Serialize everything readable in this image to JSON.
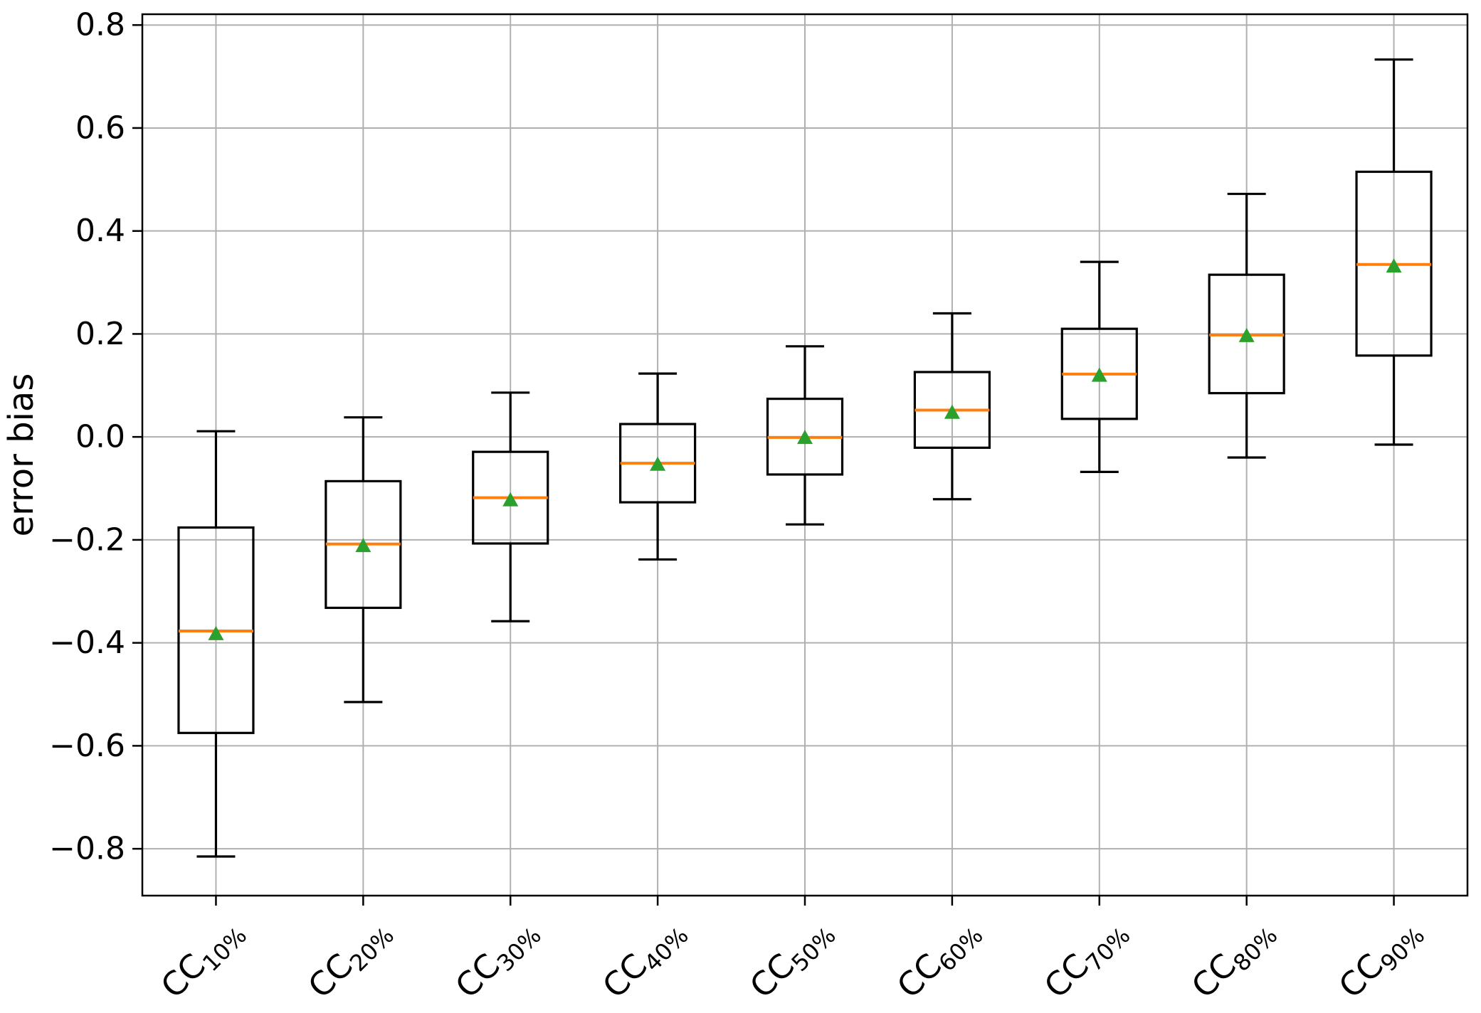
{
  "figure": {
    "background": "#ffffff"
  },
  "chart_data": {
    "type": "boxplot",
    "title": "",
    "xlabel": "",
    "ylabel": "error bias",
    "ylim": [
      -0.891,
      0.821
    ],
    "grid": true,
    "legend": "none",
    "ytick_values": [
      0.8,
      0.6,
      0.4,
      0.2,
      0.0,
      -0.2,
      -0.4,
      -0.6,
      -0.8
    ],
    "ytick_labels": [
      "0.8",
      "0.6",
      "0.4",
      "0.2",
      "0.0",
      "−0.2",
      "−0.4",
      "−0.6",
      "−0.8"
    ],
    "xtick_labels": [
      "CC10%",
      "CC20%",
      "CC30%",
      "CC40%",
      "CC50%",
      "CC60%",
      "CC70%",
      "CC80%",
      "CC90%"
    ],
    "mean_marker_shape": "triangle-up",
    "colors": {
      "box_edge": "#000000",
      "whisker": "#000000",
      "median": "#ff7f0e",
      "mean_marker": "#2ca02c",
      "grid": "#b0b0b0",
      "spine": "#000000",
      "tick_label": "#000000"
    },
    "boxes": [
      {
        "category": "CC10%",
        "prefix": "CC",
        "subscript": "10%",
        "whislo": -0.815,
        "q1": -0.575,
        "med": -0.377,
        "mean": -0.381,
        "q3": -0.176,
        "whishi": 0.011
      },
      {
        "category": "CC20%",
        "prefix": "CC",
        "subscript": "20%",
        "whislo": -0.515,
        "q1": -0.332,
        "med": -0.208,
        "mean": -0.21,
        "q3": -0.086,
        "whishi": 0.038
      },
      {
        "category": "CC30%",
        "prefix": "CC",
        "subscript": "30%",
        "whislo": -0.358,
        "q1": -0.207,
        "med": -0.118,
        "mean": -0.121,
        "q3": -0.029,
        "whishi": 0.086
      },
      {
        "category": "CC40%",
        "prefix": "CC",
        "subscript": "40%",
        "whislo": -0.238,
        "q1": -0.127,
        "med": -0.051,
        "mean": -0.052,
        "q3": 0.025,
        "whishi": 0.123
      },
      {
        "category": "CC50%",
        "prefix": "CC",
        "subscript": "50%",
        "whislo": -0.17,
        "q1": -0.073,
        "med": -0.001,
        "mean": 0.0,
        "q3": 0.074,
        "whishi": 0.176
      },
      {
        "category": "CC60%",
        "prefix": "CC",
        "subscript": "60%",
        "whislo": -0.121,
        "q1": -0.021,
        "med": 0.052,
        "mean": 0.049,
        "q3": 0.126,
        "whishi": 0.24
      },
      {
        "category": "CC70%",
        "prefix": "CC",
        "subscript": "70%",
        "whislo": -0.068,
        "q1": 0.035,
        "med": 0.122,
        "mean": 0.121,
        "q3": 0.21,
        "whishi": 0.34
      },
      {
        "category": "CC80%",
        "prefix": "CC",
        "subscript": "80%",
        "whislo": -0.04,
        "q1": 0.085,
        "med": 0.198,
        "mean": 0.198,
        "q3": 0.315,
        "whishi": 0.472
      },
      {
        "category": "CC90%",
        "prefix": "CC",
        "subscript": "90%",
        "whislo": -0.015,
        "q1": 0.158,
        "med": 0.335,
        "mean": 0.333,
        "q3": 0.515,
        "whishi": 0.733
      }
    ]
  }
}
